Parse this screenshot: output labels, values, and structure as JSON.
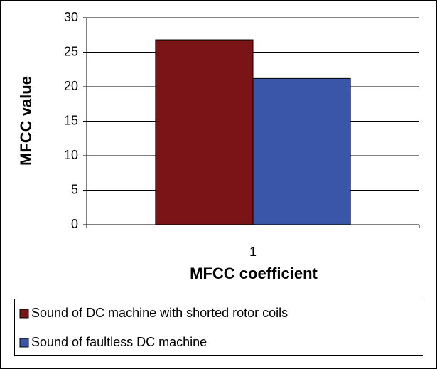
{
  "chart_data": {
    "type": "bar",
    "categories": [
      "1"
    ],
    "series": [
      {
        "name": "Sound of DC machine with shorted rotor coils",
        "color": "#7a1416",
        "values": [
          26.8
        ]
      },
      {
        "name": "Sound of faultless DC machine",
        "color": "#3a56a8",
        "values": [
          21.2
        ]
      }
    ],
    "xlabel": "MFCC coefficient",
    "ylabel": "MFCC value",
    "ylim": [
      0,
      30
    ],
    "yticks": [
      0,
      5,
      10,
      15,
      20,
      25,
      30
    ],
    "grid": true,
    "legend": "bottom"
  }
}
